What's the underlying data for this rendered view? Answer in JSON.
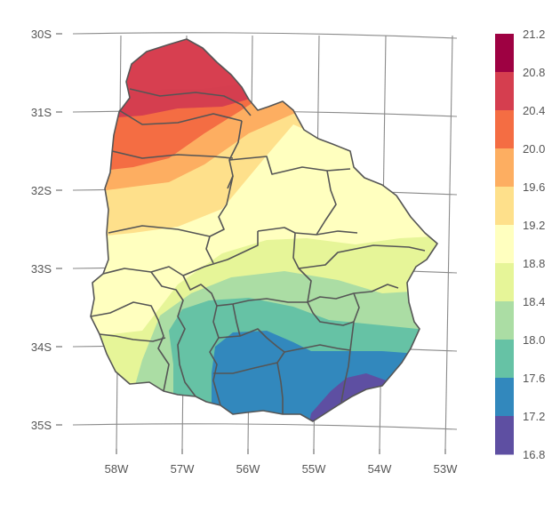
{
  "map": {
    "x_axis_ticks": [
      "58W",
      "57W",
      "56W",
      "55W",
      "54W",
      "53W"
    ],
    "y_axis_ticks": [
      "30S",
      "31S",
      "32S",
      "33S",
      "34S",
      "35S"
    ]
  },
  "legend": {
    "ticks": [
      "21.2",
      "20.8",
      "20.4",
      "20.0",
      "19.6",
      "19.2",
      "18.8",
      "18.4",
      "18.0",
      "17.6",
      "17.2",
      "16.8"
    ],
    "bins": [
      {
        "from": 20.8,
        "to": 21.2,
        "color": "#9e0142"
      },
      {
        "from": 20.4,
        "to": 20.8,
        "color": "#d53e4f"
      },
      {
        "from": 20.0,
        "to": 20.4,
        "color": "#f46d43"
      },
      {
        "from": 19.6,
        "to": 20.0,
        "color": "#fdae61"
      },
      {
        "from": 19.2,
        "to": 19.6,
        "color": "#fee08b"
      },
      {
        "from": 18.8,
        "to": 19.2,
        "color": "#ffffbf"
      },
      {
        "from": 18.4,
        "to": 18.8,
        "color": "#e6f598"
      },
      {
        "from": 18.0,
        "to": 18.4,
        "color": "#abdda4"
      },
      {
        "from": 17.6,
        "to": 18.0,
        "color": "#66c2a5"
      },
      {
        "from": 17.2,
        "to": 17.6,
        "color": "#3288bd"
      },
      {
        "from": 16.8,
        "to": 17.2,
        "color": "#5e4fa2"
      }
    ]
  },
  "colors": {
    "graticule": "#8a8a8a",
    "border": "#555555",
    "text": "#555555"
  }
}
